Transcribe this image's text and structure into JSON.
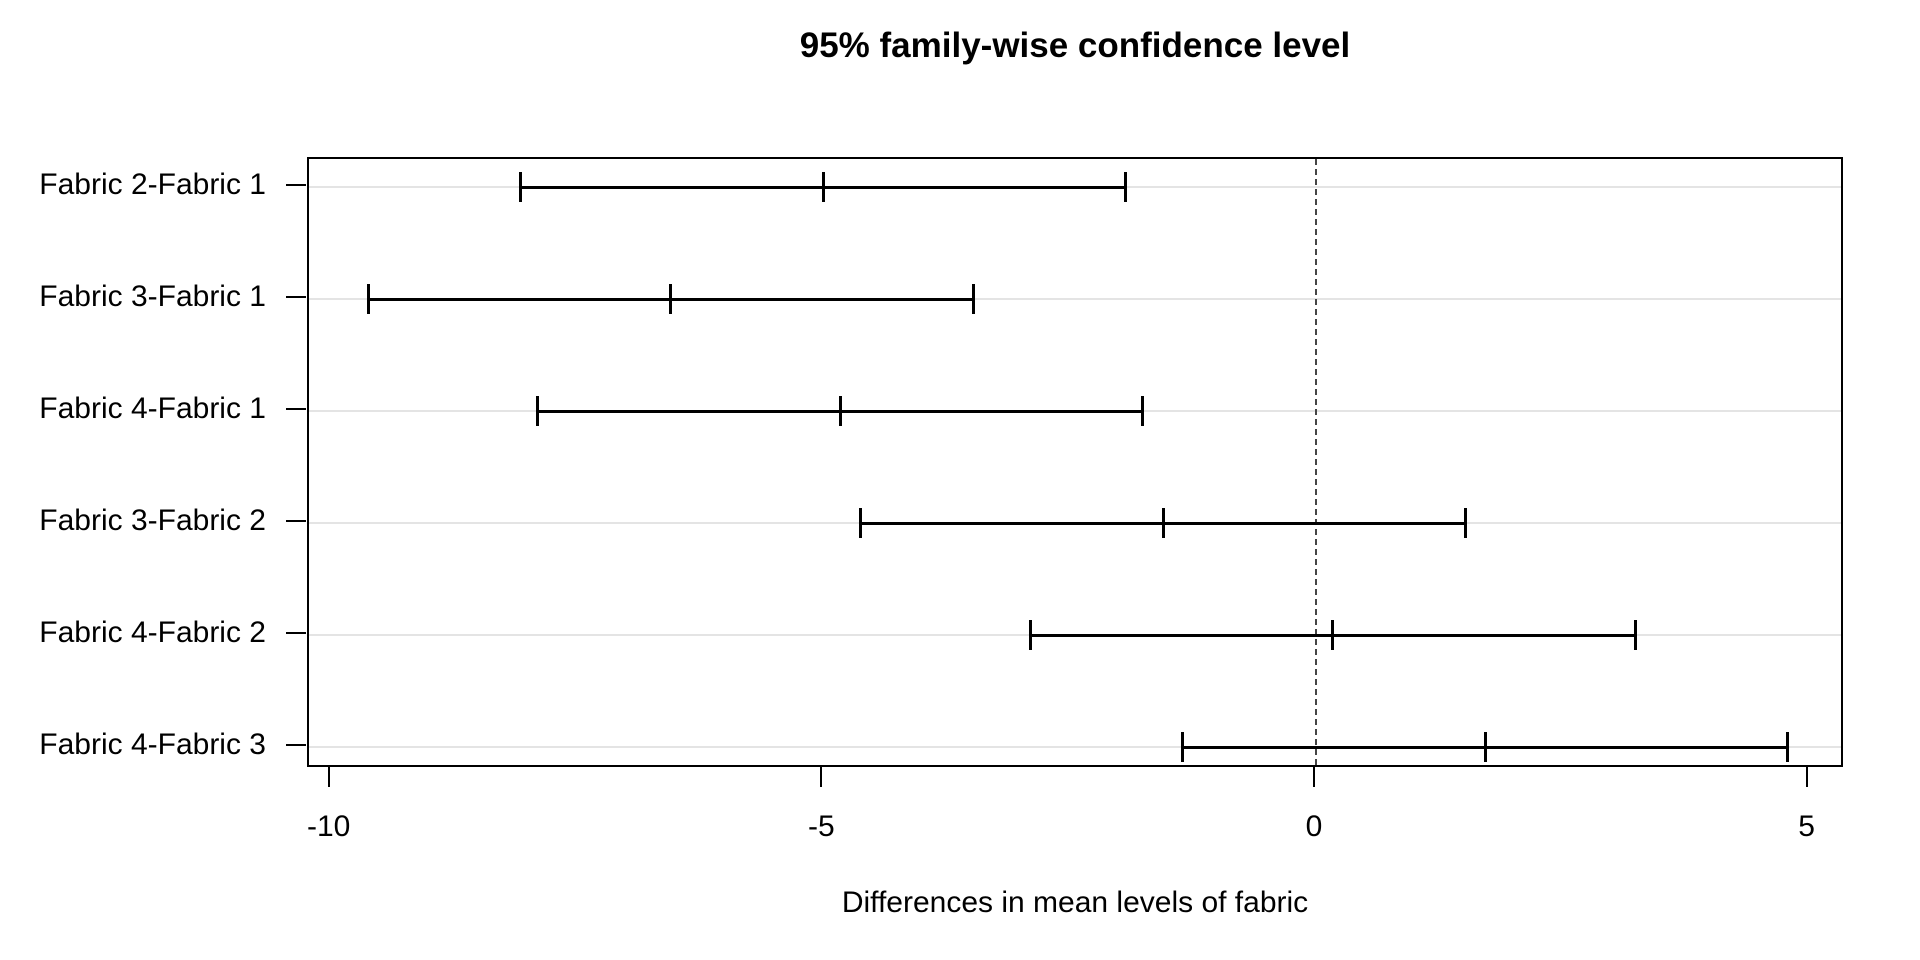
{
  "chart_data": {
    "type": "tukey-hsd-interval-plot",
    "title": "95% family-wise confidence level",
    "xlabel": "Differences in mean levels of fabric",
    "ylabel": "",
    "x_ticks": [
      -10,
      -5,
      0,
      5
    ],
    "x_tick_labels": [
      "-10",
      "-5",
      "0",
      "5"
    ],
    "x_range": [
      -10.22,
      5.37
    ],
    "reference_line_x": 0,
    "reference_line_style": "dashed",
    "grid": "light horizontal line per comparison row",
    "legend": "none",
    "comparisons": [
      {
        "label": "Fabric 2-Fabric 1",
        "diff": -5.0,
        "lwr": -8.07,
        "upr": -1.93
      },
      {
        "label": "Fabric 3-Fabric 1",
        "diff": -6.55,
        "lwr": -9.62,
        "upr": -3.48
      },
      {
        "label": "Fabric 4-Fabric 1",
        "diff": -4.83,
        "lwr": -7.9,
        "upr": -1.76
      },
      {
        "label": "Fabric 3-Fabric 2",
        "diff": -1.55,
        "lwr": -4.62,
        "upr": 1.52
      },
      {
        "label": "Fabric 4-Fabric 2",
        "diff": 0.17,
        "lwr": -2.9,
        "upr": 3.24
      },
      {
        "label": "Fabric 4-Fabric 3",
        "diff": 1.72,
        "lwr": -1.35,
        "upr": 4.79
      }
    ]
  }
}
